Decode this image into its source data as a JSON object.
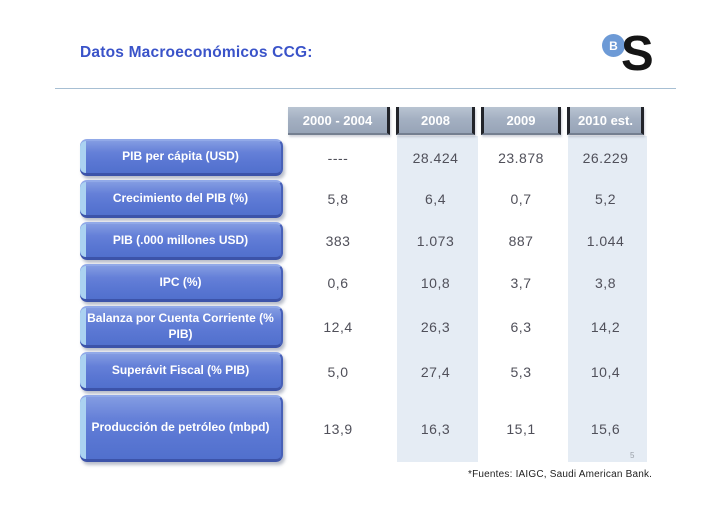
{
  "slide": {
    "title": "Datos Macroeconómicos CCG:",
    "footnote": "*Fuentes: IAIGC, Saudi American Bank.",
    "page_number": "5",
    "logo": {
      "badge_letter": "B",
      "main_letter": "S"
    }
  },
  "table": {
    "column_headers": [
      "2000 - 2004",
      "2008",
      "2009",
      "2010 est."
    ],
    "rows": [
      {
        "label": "PIB per cápita (USD)",
        "values": [
          "----",
          "28.424",
          "23.878",
          "26.229"
        ]
      },
      {
        "label": "Crecimiento del PIB (%)",
        "values": [
          "5,8",
          "6,4",
          "0,7",
          "5,2"
        ]
      },
      {
        "label": "PIB (.000 millones USD)",
        "values": [
          "383",
          "1.073",
          "887",
          "1.044"
        ]
      },
      {
        "label": "IPC (%)",
        "values": [
          "0,6",
          "10,8",
          "3,7",
          "3,8"
        ]
      },
      {
        "label": "Balanza por Cuenta Corriente (% PIB)",
        "values": [
          "12,4",
          "26,3",
          "6,3",
          "14,2"
        ]
      },
      {
        "label": "Superávit Fiscal (% PIB)",
        "values": [
          "5,0",
          "27,4",
          "5,3",
          "10,4"
        ]
      },
      {
        "label": "Producción de petróleo (mbpd)",
        "values": [
          "13,9",
          "16,3",
          "15,1",
          "15,6"
        ]
      }
    ],
    "colors": {
      "title_blue": "#3a53c9",
      "header_bg": "#a4b0c2",
      "row_button_blue": "#5a77d3",
      "row_button_edge_light": "#abd2f1",
      "column_band_bg": "#e5ecf4",
      "value_text": "#50505a"
    },
    "highlighted_columns": [
      "2008",
      "2010 est."
    ]
  }
}
